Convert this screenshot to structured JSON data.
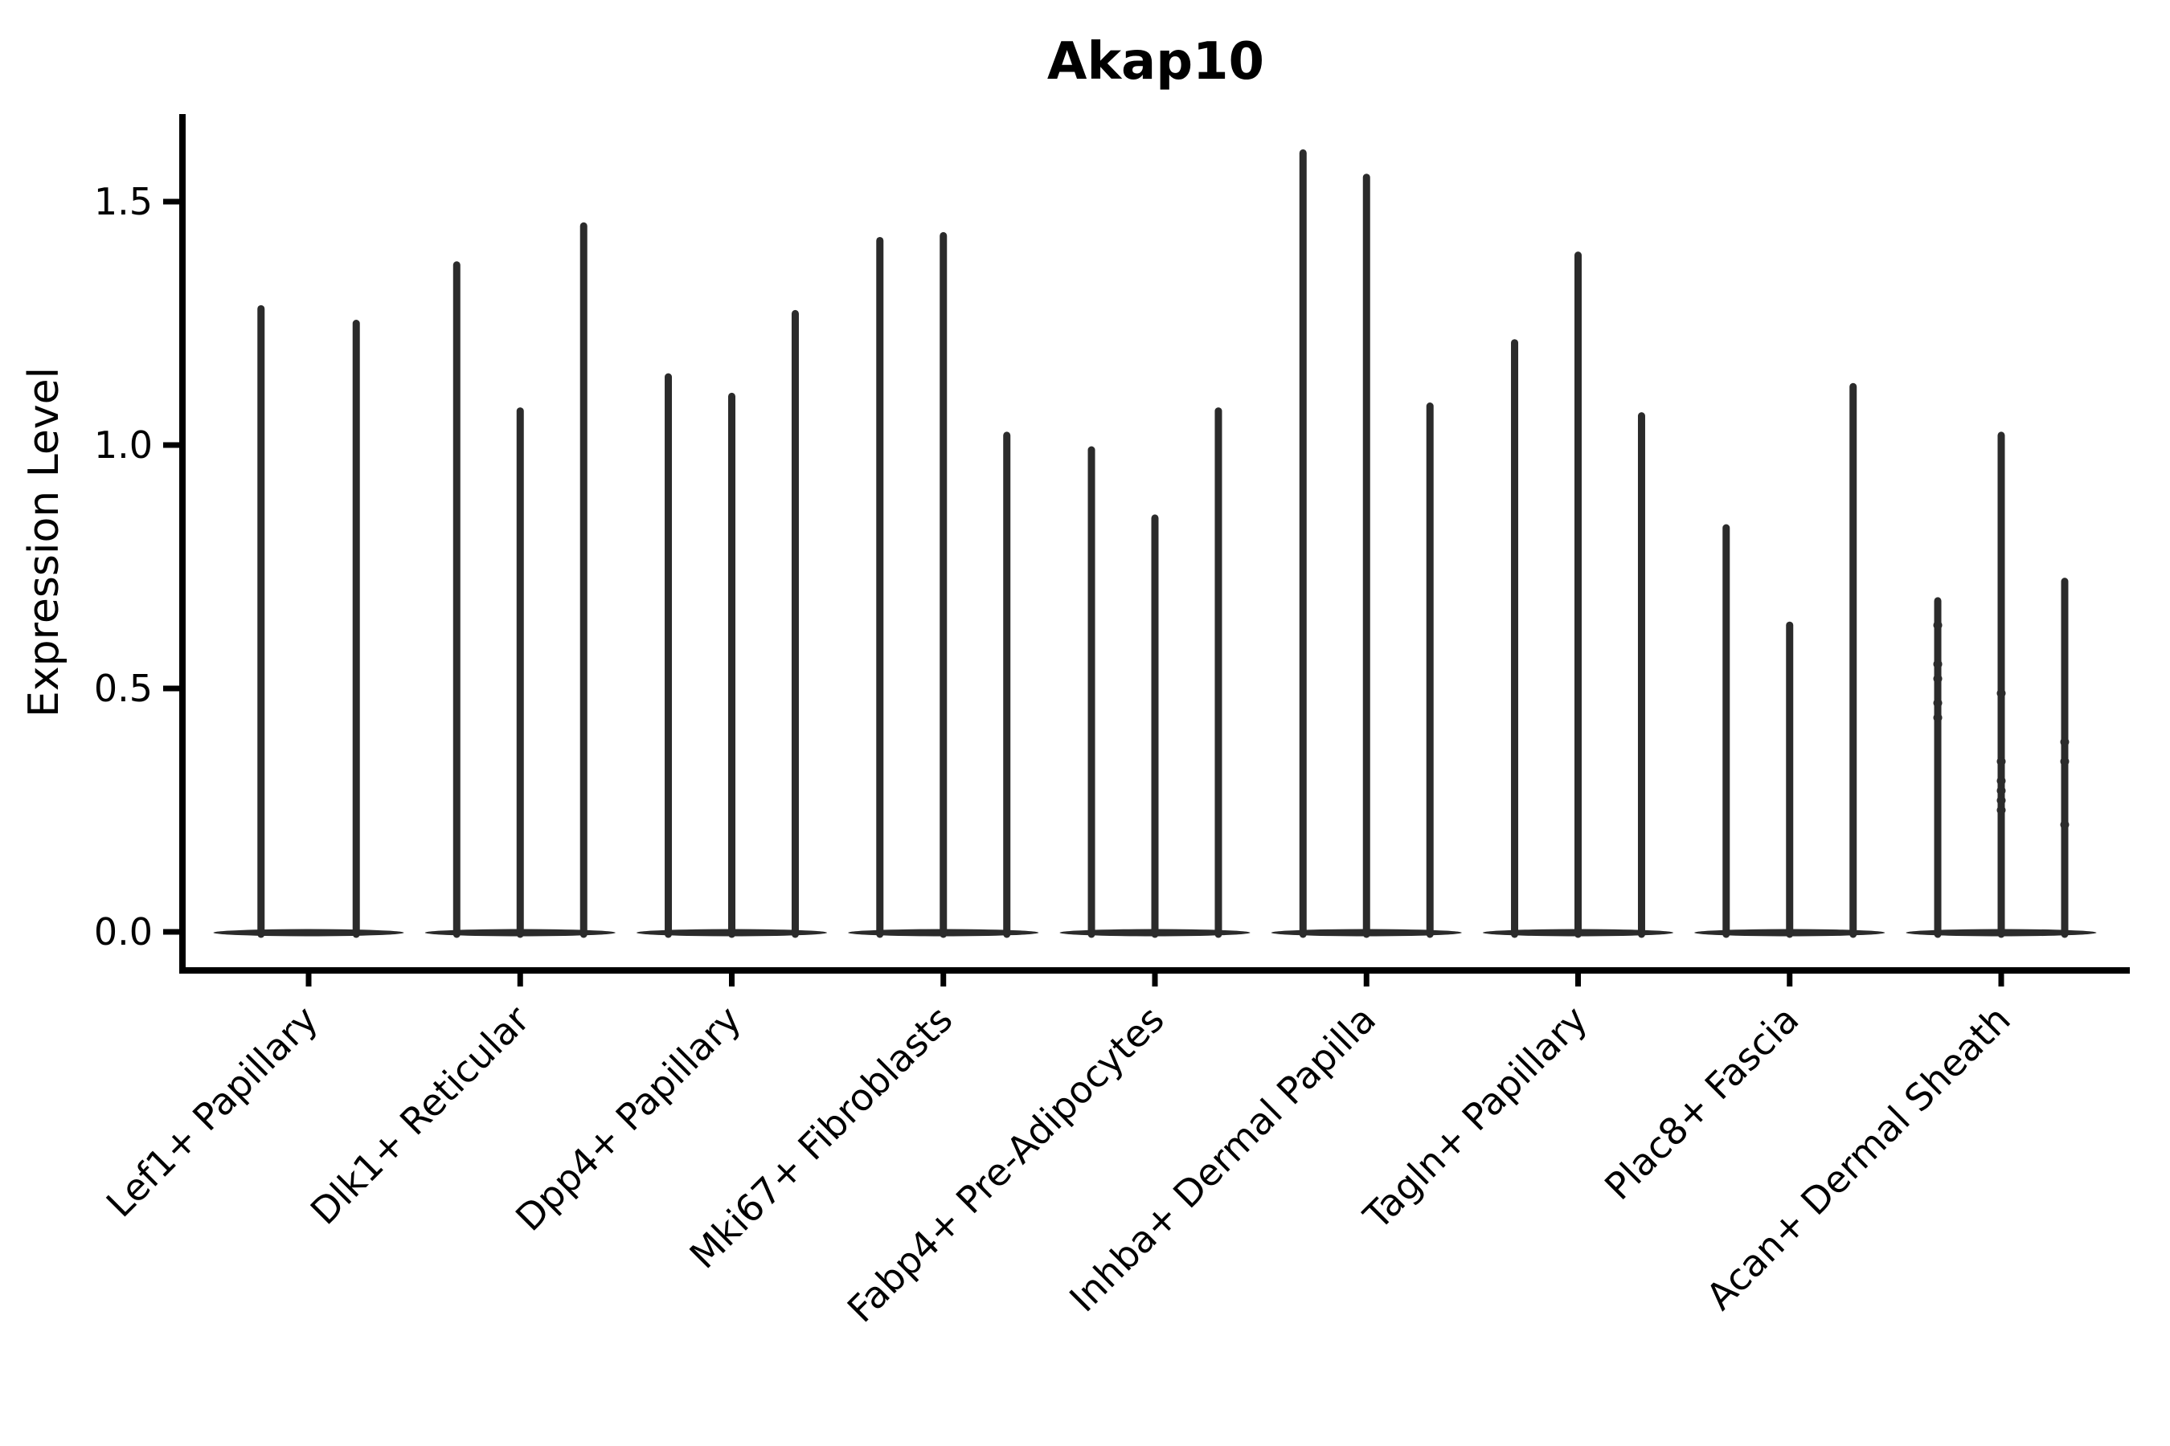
{
  "title": "Akap10",
  "y_axis": {
    "label": "Expression Level",
    "tick_labels": [
      "0.0",
      "0.5",
      "1.0",
      "1.5"
    ]
  },
  "chart_data": {
    "type": "violin",
    "title": "Akap10",
    "xlabel": "",
    "ylabel": "Expression Level",
    "ylim": [
      -0.08,
      1.68
    ],
    "yticks": [
      0.0,
      0.5,
      1.0,
      1.5
    ],
    "ytick_labels": [
      "0.0",
      "0.5",
      "1.0",
      "1.5"
    ],
    "grid": false,
    "legend_position": "none",
    "x_tick_rotation_deg": 45,
    "description": "Violin plot of Akap10 expression per fibroblast cluster; each cluster shows narrow split violins collapsed to a flat base at 0 with a thin spike up to the maximum expressing cell.",
    "categories": [
      "Lef1+ Papillary",
      "Dlk1+ Reticular",
      "Dpp4+ Papillary",
      "Mki67+ Fibroblasts",
      "Fabp4+ Pre-Adipocytes",
      "Inhba+ Dermal Papilla",
      "Tagln+ Papillary",
      "Plac8+ Fascia",
      "Acan+ Dermal Sheath"
    ],
    "groups": [
      {
        "category": "Lef1+ Papillary",
        "violins": [
          {
            "offset": -0.225,
            "max_expression": 1.28,
            "dots": []
          },
          {
            "offset": 0.225,
            "max_expression": 1.25,
            "dots": []
          }
        ]
      },
      {
        "category": "Dlk1+ Reticular",
        "violins": [
          {
            "offset": -0.3,
            "max_expression": 1.37,
            "dots": []
          },
          {
            "offset": 0.0,
            "max_expression": 1.07,
            "dots": []
          },
          {
            "offset": 0.3,
            "max_expression": 1.45,
            "dots": []
          }
        ]
      },
      {
        "category": "Dpp4+ Papillary",
        "violins": [
          {
            "offset": -0.3,
            "max_expression": 1.14,
            "dots": []
          },
          {
            "offset": 0.0,
            "max_expression": 1.1,
            "dots": []
          },
          {
            "offset": 0.3,
            "max_expression": 1.27,
            "dots": []
          }
        ]
      },
      {
        "category": "Mki67+ Fibroblasts",
        "violins": [
          {
            "offset": -0.3,
            "max_expression": 1.42,
            "dots": []
          },
          {
            "offset": 0.0,
            "max_expression": 1.43,
            "dots": []
          },
          {
            "offset": 0.3,
            "max_expression": 1.02,
            "dots": []
          }
        ]
      },
      {
        "category": "Fabp4+ Pre-Adipocytes",
        "violins": [
          {
            "offset": -0.3,
            "max_expression": 0.99,
            "dots": []
          },
          {
            "offset": 0.0,
            "max_expression": 0.85,
            "dots": []
          },
          {
            "offset": 0.3,
            "max_expression": 1.07,
            "dots": []
          }
        ]
      },
      {
        "category": "Inhba+ Dermal Papilla",
        "violins": [
          {
            "offset": -0.3,
            "max_expression": 1.6,
            "dots": []
          },
          {
            "offset": 0.0,
            "max_expression": 1.55,
            "dots": []
          },
          {
            "offset": 0.3,
            "max_expression": 1.08,
            "dots": []
          }
        ]
      },
      {
        "category": "Tagln+ Papillary",
        "violins": [
          {
            "offset": -0.3,
            "max_expression": 1.21,
            "dots": []
          },
          {
            "offset": 0.0,
            "max_expression": 1.39,
            "dots": []
          },
          {
            "offset": 0.3,
            "max_expression": 1.06,
            "dots": []
          }
        ]
      },
      {
        "category": "Plac8+ Fascia",
        "violins": [
          {
            "offset": -0.3,
            "max_expression": 0.83,
            "dots": []
          },
          {
            "offset": 0.0,
            "max_expression": 0.63,
            "dots": []
          },
          {
            "offset": 0.3,
            "max_expression": 1.12,
            "dots": []
          }
        ]
      },
      {
        "category": "Acan+ Dermal Sheath",
        "violins": [
          {
            "offset": -0.3,
            "max_expression": 0.68,
            "dots": [
              0.63,
              0.55,
              0.52,
              0.47,
              0.44
            ]
          },
          {
            "offset": 0.0,
            "max_expression": 1.02,
            "dots": [
              0.49,
              0.35,
              0.31,
              0.29,
              0.27,
              0.25
            ]
          },
          {
            "offset": 0.3,
            "max_expression": 0.72,
            "dots": [
              0.39,
              0.35,
              0.22
            ]
          }
        ]
      }
    ],
    "colors": {
      "violin": "#2b2b2b",
      "axis": "#000000",
      "text": "#000000",
      "background": "#ffffff"
    }
  }
}
